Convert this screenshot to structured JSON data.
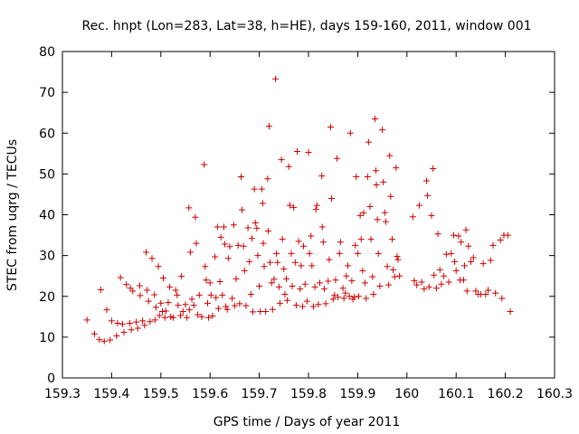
{
  "chart_data": {
    "type": "scatter",
    "title": "Rec. hnpt (Lon=283, Lat=38, h=HE), days 159-160, 2011, window 001",
    "xlabel": "GPS time / Days of year 2011",
    "ylabel": "STEC from uqrg / TECUs",
    "xlim": [
      159.3,
      160.3
    ],
    "ylim": [
      0,
      80
    ],
    "xticks": [
      "159.3",
      "159.4",
      "159.5",
      "159.6",
      "159.7",
      "159.8",
      "159.9",
      "160",
      "160.1",
      "160.2",
      "160.3"
    ],
    "yticks": [
      "0",
      "10",
      "20",
      "30",
      "40",
      "50",
      "60",
      "70",
      "80"
    ],
    "marker": "plus",
    "marker_color": "#cc0000",
    "series": [
      {
        "name": "STEC",
        "points": [
          [
            159.35,
            14.2
          ],
          [
            159.365,
            10.8
          ],
          [
            159.375,
            9.4
          ],
          [
            159.378,
            21.6
          ],
          [
            159.385,
            9.0
          ],
          [
            159.39,
            16.7
          ],
          [
            159.397,
            9.3
          ],
          [
            159.4,
            14.0
          ],
          [
            159.41,
            10.3
          ],
          [
            159.412,
            13.4
          ],
          [
            159.418,
            24.6
          ],
          [
            159.422,
            13.2
          ],
          [
            159.425,
            11.2
          ],
          [
            159.43,
            22.9
          ],
          [
            159.437,
            13.4
          ],
          [
            159.438,
            22.0
          ],
          [
            159.44,
            11.8
          ],
          [
            159.443,
            21.3
          ],
          [
            159.45,
            13.7
          ],
          [
            159.453,
            12.2
          ],
          [
            159.457,
            22.6
          ],
          [
            159.458,
            20.2
          ],
          [
            159.463,
            14.0
          ],
          [
            159.467,
            12.9
          ],
          [
            159.47,
            30.8
          ],
          [
            159.472,
            21.5
          ],
          [
            159.475,
            18.8
          ],
          [
            159.478,
            13.8
          ],
          [
            159.482,
            29.3
          ],
          [
            159.487,
            20.4
          ],
          [
            159.488,
            14.2
          ],
          [
            159.49,
            17.3
          ],
          [
            159.495,
            27.3
          ],
          [
            159.497,
            15.3
          ],
          [
            159.5,
            18.3
          ],
          [
            159.503,
            16.3
          ],
          [
            159.505,
            24.5
          ],
          [
            159.508,
            14.8
          ],
          [
            159.51,
            16.4
          ],
          [
            159.515,
            18.5
          ],
          [
            159.518,
            22.3
          ],
          [
            159.52,
            15.0
          ],
          [
            159.525,
            14.8
          ],
          [
            159.53,
            21.5
          ],
          [
            159.533,
            20.3
          ],
          [
            159.535,
            17.8
          ],
          [
            159.54,
            15.3
          ],
          [
            159.542,
            24.9
          ],
          [
            159.545,
            16.3
          ],
          [
            159.55,
            18.0
          ],
          [
            159.553,
            14.8
          ],
          [
            159.557,
            41.7
          ],
          [
            159.558,
            16.7
          ],
          [
            159.56,
            30.8
          ],
          [
            159.563,
            19.3
          ],
          [
            159.567,
            17.8
          ],
          [
            159.57,
            39.4
          ],
          [
            159.572,
            33.0
          ],
          [
            159.575,
            15.5
          ],
          [
            159.578,
            20.3
          ],
          [
            159.583,
            15.0
          ],
          [
            159.588,
            52.3
          ],
          [
            159.59,
            27.3
          ],
          [
            159.592,
            24.0
          ],
          [
            159.595,
            18.3
          ],
          [
            159.597,
            14.8
          ],
          [
            159.6,
            23.3
          ],
          [
            159.602,
            20.3
          ],
          [
            159.605,
            15.2
          ],
          [
            159.61,
            29.7
          ],
          [
            159.612,
            19.7
          ],
          [
            159.615,
            37.0
          ],
          [
            159.617,
            17.0
          ],
          [
            159.62,
            23.6
          ],
          [
            159.622,
            34.5
          ],
          [
            159.625,
            20.3
          ],
          [
            159.628,
            37.0
          ],
          [
            159.63,
            32.8
          ],
          [
            159.632,
            17.5
          ],
          [
            159.635,
            16.8
          ],
          [
            159.637,
            29.3
          ],
          [
            159.64,
            32.2
          ],
          [
            159.645,
            19.5
          ],
          [
            159.648,
            37.5
          ],
          [
            159.65,
            17.7
          ],
          [
            159.653,
            24.3
          ],
          [
            159.657,
            32.5
          ],
          [
            159.66,
            18.2
          ],
          [
            159.663,
            49.3
          ],
          [
            159.665,
            41.2
          ],
          [
            159.668,
            32.3
          ],
          [
            159.67,
            26.3
          ],
          [
            159.673,
            17.7
          ],
          [
            159.677,
            36.8
          ],
          [
            159.68,
            28.5
          ],
          [
            159.683,
            20.5
          ],
          [
            159.685,
            34.2
          ],
          [
            159.687,
            16.2
          ],
          [
            159.69,
            46.3
          ],
          [
            159.692,
            38.0
          ],
          [
            159.695,
            36.7
          ],
          [
            159.697,
            30.0
          ],
          [
            159.7,
            22.5
          ],
          [
            159.702,
            16.3
          ],
          [
            159.705,
            46.3
          ],
          [
            159.707,
            42.8
          ],
          [
            159.708,
            33.0
          ],
          [
            159.71,
            27.3
          ],
          [
            159.713,
            16.3
          ],
          [
            159.717,
            48.8
          ],
          [
            159.718,
            36.0
          ],
          [
            159.72,
            61.7
          ],
          [
            159.722,
            28.3
          ],
          [
            159.725,
            23.3
          ],
          [
            159.727,
            16.8
          ],
          [
            159.73,
            24.2
          ],
          [
            159.733,
            73.3
          ],
          [
            159.735,
            30.5
          ],
          [
            159.737,
            28.3
          ],
          [
            159.74,
            22.3
          ],
          [
            159.742,
            18.3
          ],
          [
            159.745,
            53.5
          ],
          [
            159.747,
            34.0
          ],
          [
            159.75,
            26.7
          ],
          [
            159.752,
            20.5
          ],
          [
            159.755,
            24.3
          ],
          [
            159.757,
            19.0
          ],
          [
            159.76,
            51.8
          ],
          [
            159.762,
            42.3
          ],
          [
            159.765,
            30.5
          ],
          [
            159.767,
            22.5
          ],
          [
            159.77,
            41.8
          ],
          [
            159.773,
            28.3
          ],
          [
            159.775,
            17.8
          ],
          [
            159.777,
            55.5
          ],
          [
            159.78,
            33.5
          ],
          [
            159.783,
            21.8
          ],
          [
            159.785,
            27.5
          ],
          [
            159.788,
            17.5
          ],
          [
            159.79,
            32.3
          ],
          [
            159.793,
            23.0
          ],
          [
            159.797,
            18.8
          ],
          [
            159.8,
            55.3
          ],
          [
            159.802,
            30.5
          ],
          [
            159.805,
            34.8
          ],
          [
            159.807,
            27.5
          ],
          [
            159.81,
            17.5
          ],
          [
            159.813,
            22.3
          ],
          [
            159.815,
            41.3
          ],
          [
            159.817,
            42.3
          ],
          [
            159.82,
            18.0
          ],
          [
            159.823,
            23.3
          ],
          [
            159.827,
            49.5
          ],
          [
            159.828,
            37.0
          ],
          [
            159.83,
            33.3
          ],
          [
            159.832,
            21.8
          ],
          [
            159.835,
            18.2
          ],
          [
            159.84,
            23.7
          ],
          [
            159.842,
            29.0
          ],
          [
            159.845,
            61.5
          ],
          [
            159.847,
            44.0
          ],
          [
            159.85,
            19.3
          ],
          [
            159.853,
            20.3
          ],
          [
            159.855,
            24.0
          ],
          [
            159.858,
            53.8
          ],
          [
            159.86,
            19.8
          ],
          [
            159.863,
            30.5
          ],
          [
            159.865,
            33.3
          ],
          [
            159.87,
            22.0
          ],
          [
            159.872,
            19.5
          ],
          [
            159.875,
            20.8
          ],
          [
            159.877,
            25.0
          ],
          [
            159.88,
            27.5
          ],
          [
            159.883,
            20.0
          ],
          [
            159.885,
            60.0
          ],
          [
            159.888,
            23.8
          ],
          [
            159.89,
            19.3
          ],
          [
            159.893,
            19.8
          ],
          [
            159.895,
            32.5
          ],
          [
            159.897,
            49.3
          ],
          [
            159.9,
            30.5
          ],
          [
            159.902,
            20.0
          ],
          [
            159.905,
            39.8
          ],
          [
            159.907,
            34.0
          ],
          [
            159.91,
            26.3
          ],
          [
            159.912,
            40.5
          ],
          [
            159.915,
            23.3
          ],
          [
            159.917,
            19.5
          ],
          [
            159.92,
            49.3
          ],
          [
            159.922,
            57.8
          ],
          [
            159.925,
            42.0
          ],
          [
            159.927,
            34.0
          ],
          [
            159.93,
            24.8
          ],
          [
            159.932,
            20.5
          ],
          [
            159.935,
            63.5
          ],
          [
            159.937,
            50.8
          ],
          [
            159.938,
            47.3
          ],
          [
            159.94,
            38.8
          ],
          [
            159.942,
            30.5
          ],
          [
            159.945,
            22.5
          ],
          [
            159.95,
            60.8
          ],
          [
            159.952,
            48.0
          ],
          [
            159.955,
            40.5
          ],
          [
            159.957,
            38.3
          ],
          [
            159.96,
            27.3
          ],
          [
            159.963,
            22.8
          ],
          [
            159.965,
            54.5
          ],
          [
            159.967,
            44.5
          ],
          [
            159.97,
            34.0
          ],
          [
            159.972,
            26.5
          ],
          [
            159.975,
            24.8
          ],
          [
            159.978,
            51.5
          ],
          [
            159.98,
            29.8
          ],
          [
            159.982,
            29.0
          ],
          [
            159.985,
            25.0
          ],
          [
            160.012,
            39.5
          ],
          [
            160.015,
            23.8
          ],
          [
            160.02,
            22.8
          ],
          [
            160.025,
            42.3
          ],
          [
            160.03,
            23.5
          ],
          [
            160.035,
            21.8
          ],
          [
            160.04,
            48.3
          ],
          [
            160.042,
            44.7
          ],
          [
            160.045,
            22.3
          ],
          [
            160.05,
            39.8
          ],
          [
            160.053,
            51.3
          ],
          [
            160.055,
            25.2
          ],
          [
            160.06,
            22.0
          ],
          [
            160.063,
            35.3
          ],
          [
            160.067,
            26.5
          ],
          [
            160.07,
            23.0
          ],
          [
            160.075,
            25.0
          ],
          [
            160.08,
            30.3
          ],
          [
            160.085,
            23.5
          ],
          [
            160.09,
            30.5
          ],
          [
            160.095,
            35.0
          ],
          [
            160.097,
            28.5
          ],
          [
            160.1,
            26.3
          ],
          [
            160.105,
            34.8
          ],
          [
            160.108,
            24.0
          ],
          [
            160.11,
            33.3
          ],
          [
            160.115,
            24.0
          ],
          [
            160.117,
            27.5
          ],
          [
            160.12,
            36.3
          ],
          [
            160.122,
            21.3
          ],
          [
            160.125,
            32.3
          ],
          [
            160.13,
            28.5
          ],
          [
            160.135,
            29.5
          ],
          [
            160.14,
            21.3
          ],
          [
            160.145,
            20.5
          ],
          [
            160.15,
            20.5
          ],
          [
            160.155,
            28.0
          ],
          [
            160.16,
            20.5
          ],
          [
            160.165,
            21.5
          ],
          [
            160.17,
            28.8
          ],
          [
            160.175,
            32.5
          ],
          [
            160.18,
            20.8
          ],
          [
            160.19,
            33.8
          ],
          [
            160.193,
            19.5
          ],
          [
            160.197,
            35.0
          ],
          [
            160.205,
            35.0
          ],
          [
            160.21,
            16.3
          ]
        ]
      }
    ]
  }
}
